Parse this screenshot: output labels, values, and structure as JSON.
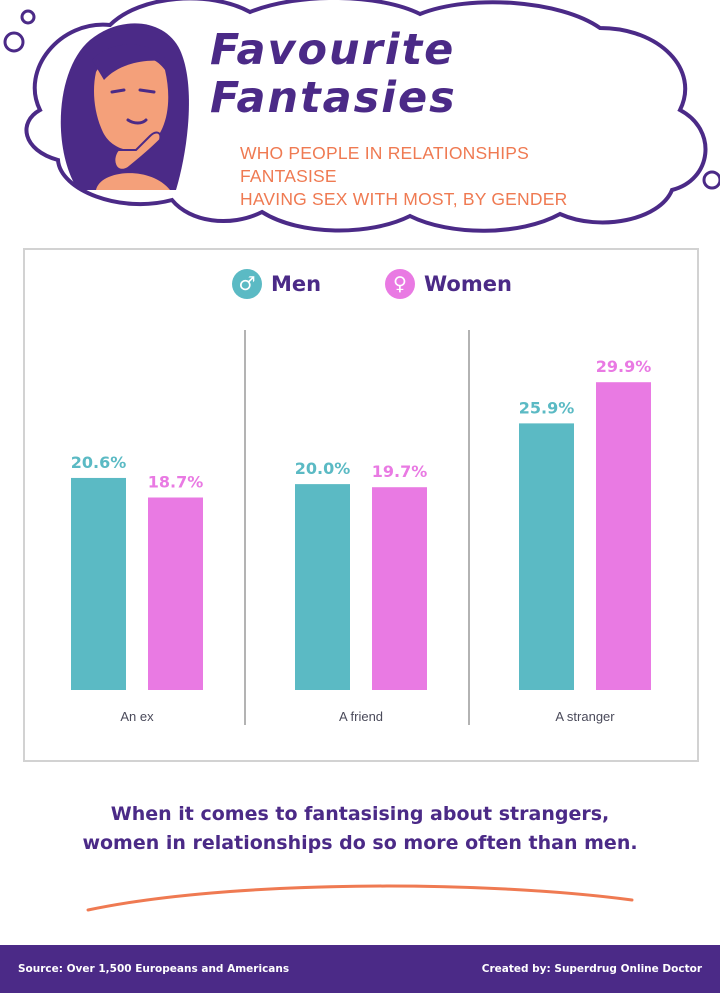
{
  "header": {
    "title_line1": "Favourite",
    "title_line2": "Fantasies",
    "subtitle_line1": "WHO PEOPLE IN RELATIONSHIPS FANTASISE",
    "subtitle_line2": "HAVING SEX WITH MOST, BY GENDER"
  },
  "legend": {
    "men_icon": "♂",
    "men_label": "Men",
    "women_icon": "♀",
    "women_label": "Women"
  },
  "colors": {
    "men": "#5bbac4",
    "women": "#e97ae3",
    "purple": "#4b2a87",
    "orange": "#ef7a52"
  },
  "chart_data": {
    "type": "bar",
    "categories": [
      "An ex",
      "A friend",
      "A stranger"
    ],
    "series": [
      {
        "name": "Men",
        "values": [
          20.6,
          20.0,
          25.9
        ],
        "labels": [
          "20.6%",
          "20.0%",
          "25.9%"
        ]
      },
      {
        "name": "Women",
        "values": [
          18.7,
          19.7,
          29.9
        ],
        "labels": [
          "18.7%",
          "19.7%",
          "29.9%"
        ]
      }
    ],
    "ylim": [
      0,
      34
    ],
    "grid": false,
    "legend_position": "top-center"
  },
  "takeaway": {
    "line1": "When it comes to fantasising about strangers,",
    "line2": "women in relationships do so more often than men."
  },
  "footer": {
    "source": "Source: Over 1,500 Europeans and Americans",
    "credit": "Created by: Superdrug Online Doctor"
  }
}
